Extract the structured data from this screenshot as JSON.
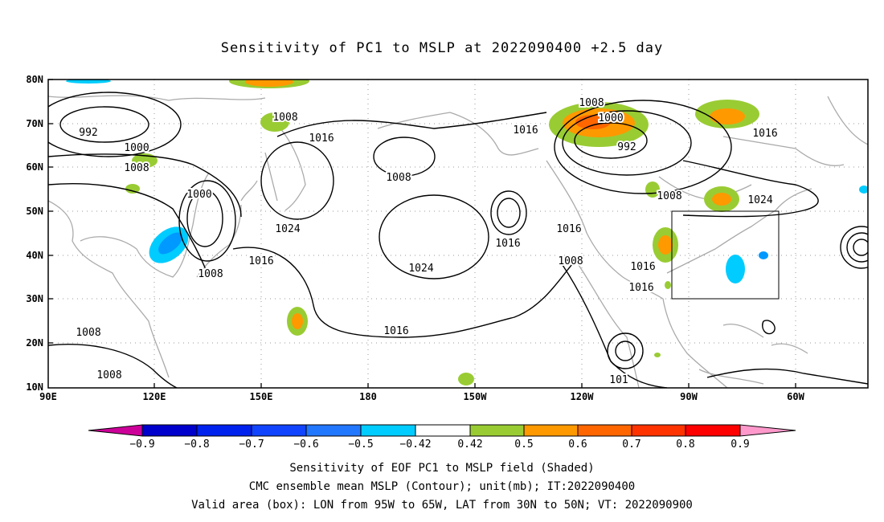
{
  "title": "Sensitivity of PC1 to MSLP at 2022090400 +2.5 day",
  "map": {
    "lat_labels": [
      "80N",
      "70N",
      "60N",
      "50N",
      "40N",
      "30N",
      "20N",
      "10N"
    ],
    "lon_labels": [
      "90E",
      "120E",
      "150E",
      "180",
      "150W",
      "120W",
      "90W",
      "60W"
    ],
    "contour_labels": [
      "992",
      "1000",
      "1008",
      "1008",
      "1016",
      "1000",
      "1024",
      "1008",
      "1016",
      "1008",
      "1024",
      "1016",
      "1016",
      "1008",
      "1016",
      "1000",
      "992",
      "1016",
      "1008",
      "1024",
      "1016",
      "1016",
      "1016",
      "1008",
      "1008",
      "1008",
      "101"
    ],
    "colors": {
      "contour": "#000000",
      "coast": "#aaaaaa",
      "grid": "#999999",
      "green": "#99cc33",
      "orange": "#ff9900",
      "blue": "#0099ff"
    }
  },
  "colorbar": {
    "labels": [
      "−0.9",
      "−0.8",
      "−0.7",
      "−0.6",
      "−0.5",
      "−0.42",
      "0.42",
      "0.5",
      "0.6",
      "0.7",
      "0.8",
      "0.9"
    ],
    "colors": [
      "#cc0099",
      "#0000cc",
      "#0022ee",
      "#1144ff",
      "#2277ff",
      "#0099ff",
      "#00ccff",
      "#ffffff",
      "#99cc33",
      "#ff9900",
      "#ff6600",
      "#ff3300",
      "#ff0000",
      "#ff99cc"
    ]
  },
  "footer": {
    "line1": "Sensitivity of EOF PC1 to MSLP field (Shaded)",
    "line2": "CMC ensemble mean MSLP (Contour); unit(mb); IT:2022090400",
    "line3": "Valid area (box): LON from 95W to 65W, LAT from 30N to 50N; VT: 2022090900"
  }
}
